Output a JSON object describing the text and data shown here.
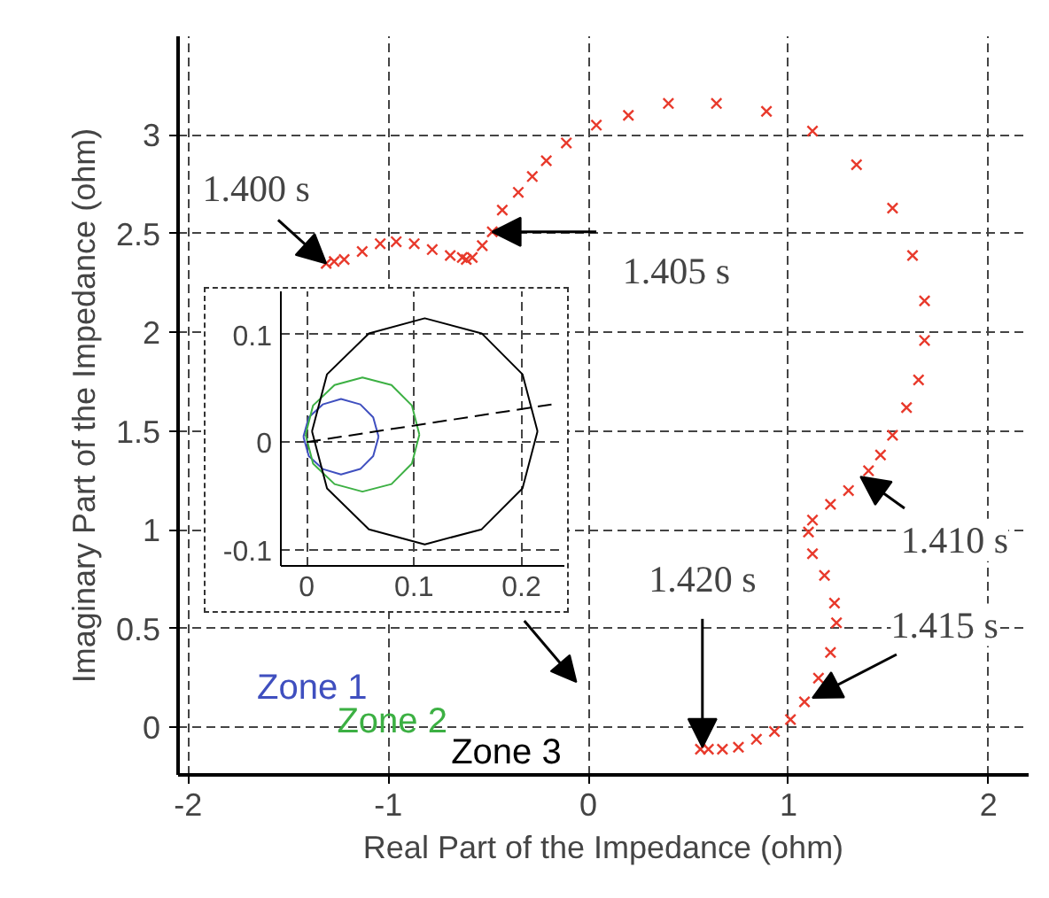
{
  "chart_data": [
    {
      "type": "scatter",
      "xlabel": "Real Part of the Impedance (ohm)",
      "ylabel": "Imaginary Part of the Impedance (ohm)",
      "xlim": [
        -2.05,
        2.2
      ],
      "ylim": [
        -0.24,
        3.5
      ],
      "xticks": [
        -2,
        -1,
        0,
        1,
        2
      ],
      "yticks": [
        0,
        0.5,
        1,
        1.5,
        2,
        2.5,
        3
      ],
      "grid": true,
      "marker": "cross",
      "series": [
        {
          "color": "#e8392b",
          "x": [
            -1.31,
            -1.27,
            -1.22,
            -1.13,
            -1.04,
            -0.96,
            -0.87,
            -0.78,
            -0.69,
            -0.63,
            -0.61,
            -0.58,
            -0.53,
            -0.48,
            -0.43,
            -0.35,
            -0.28,
            -0.21,
            -0.11,
            0.04,
            0.2,
            0.4,
            0.64,
            0.89,
            1.12,
            1.34,
            1.52,
            1.62,
            1.68,
            1.68,
            1.65,
            1.59,
            1.52,
            1.46,
            1.4,
            1.3,
            1.21,
            1.12,
            1.1,
            1.12,
            1.18,
            1.23,
            1.24,
            1.21,
            1.15,
            1.08,
            1.01,
            0.93,
            0.84,
            0.75,
            0.67,
            0.6,
            0.56
          ],
          "values": [
            2.35,
            2.36,
            2.37,
            2.41,
            2.45,
            2.46,
            2.45,
            2.42,
            2.39,
            2.38,
            2.37,
            2.38,
            2.44,
            2.51,
            2.62,
            2.71,
            2.79,
            2.87,
            2.96,
            3.05,
            3.1,
            3.16,
            3.16,
            3.12,
            3.02,
            2.85,
            2.63,
            2.39,
            2.16,
            1.96,
            1.76,
            1.62,
            1.48,
            1.38,
            1.3,
            1.2,
            1.13,
            1.05,
            0.99,
            0.88,
            0.77,
            0.63,
            0.53,
            0.38,
            0.25,
            0.13,
            0.04,
            -0.02,
            -0.06,
            -0.1,
            -0.11,
            -0.11,
            -0.11
          ]
        }
      ],
      "annotations": [
        {
          "text": "1.400 s",
          "x": -1.31,
          "y": 2.35
        },
        {
          "text": "1.405 s",
          "x": -0.48,
          "y": 2.51
        },
        {
          "text": "1.410 s",
          "x": 1.36,
          "y": 1.27
        },
        {
          "text": "1.415 s",
          "x": 1.12,
          "y": 0.15
        },
        {
          "text": "1.420 s",
          "x": 0.57,
          "y": -0.1
        }
      ]
    },
    {
      "type": "line",
      "xlim": [
        -0.024,
        0.24
      ],
      "ylim": [
        -0.115,
        0.14
      ],
      "xticks": [
        0,
        0.1,
        0.2
      ],
      "yticks": [
        -0.1,
        0,
        0.1
      ],
      "grid": true,
      "series": [
        {
          "name": "Zone 1",
          "color": "#3f4fbf",
          "x": [
            0.067,
            0.062,
            0.05,
            0.032,
            0.015,
            0.002,
            -0.003
          ],
          "values": [
            0.005,
            0.023,
            0.035,
            0.04,
            0.035,
            0.023,
            0.005
          ]
        },
        {
          "color": "#3f4fbf",
          "x": [
            -0.003,
            0.002,
            0.015,
            0.032,
            0.05,
            0.062,
            0.067
          ],
          "values": [
            0.005,
            -0.013,
            -0.025,
            -0.03,
            -0.025,
            -0.013,
            0.005
          ]
        },
        {
          "name": "Zone 2",
          "color": "#3cb043",
          "x": [
            0.105,
            0.098,
            0.079,
            0.052,
            0.026,
            0.006,
            -0.001
          ],
          "values": [
            0.007,
            0.034,
            0.053,
            0.06,
            0.053,
            0.034,
            0.007
          ]
        },
        {
          "color": "#3cb043",
          "x": [
            -0.001,
            0.006,
            0.026,
            0.052,
            0.079,
            0.098,
            0.105
          ],
          "values": [
            0.007,
            -0.02,
            -0.039,
            -0.046,
            -0.039,
            -0.02,
            0.007
          ]
        },
        {
          "name": "Zone 3",
          "color": "#000000",
          "x": [
            0.215,
            0.201,
            0.163,
            0.11,
            0.058,
            0.019,
            0.005
          ],
          "values": [
            0.01,
            0.063,
            0.101,
            0.115,
            0.101,
            0.063,
            0.01
          ]
        },
        {
          "color": "#000000",
          "x": [
            0.005,
            0.019,
            0.058,
            0.11,
            0.163,
            0.201,
            0.215
          ],
          "values": [
            0.01,
            -0.043,
            -0.081,
            -0.095,
            -0.081,
            -0.043,
            0.01
          ]
        },
        {
          "color": "#000000",
          "line_style": "dashed",
          "x": [
            0,
            0.228
          ],
          "values": [
            0,
            0.035
          ]
        }
      ]
    }
  ]
}
